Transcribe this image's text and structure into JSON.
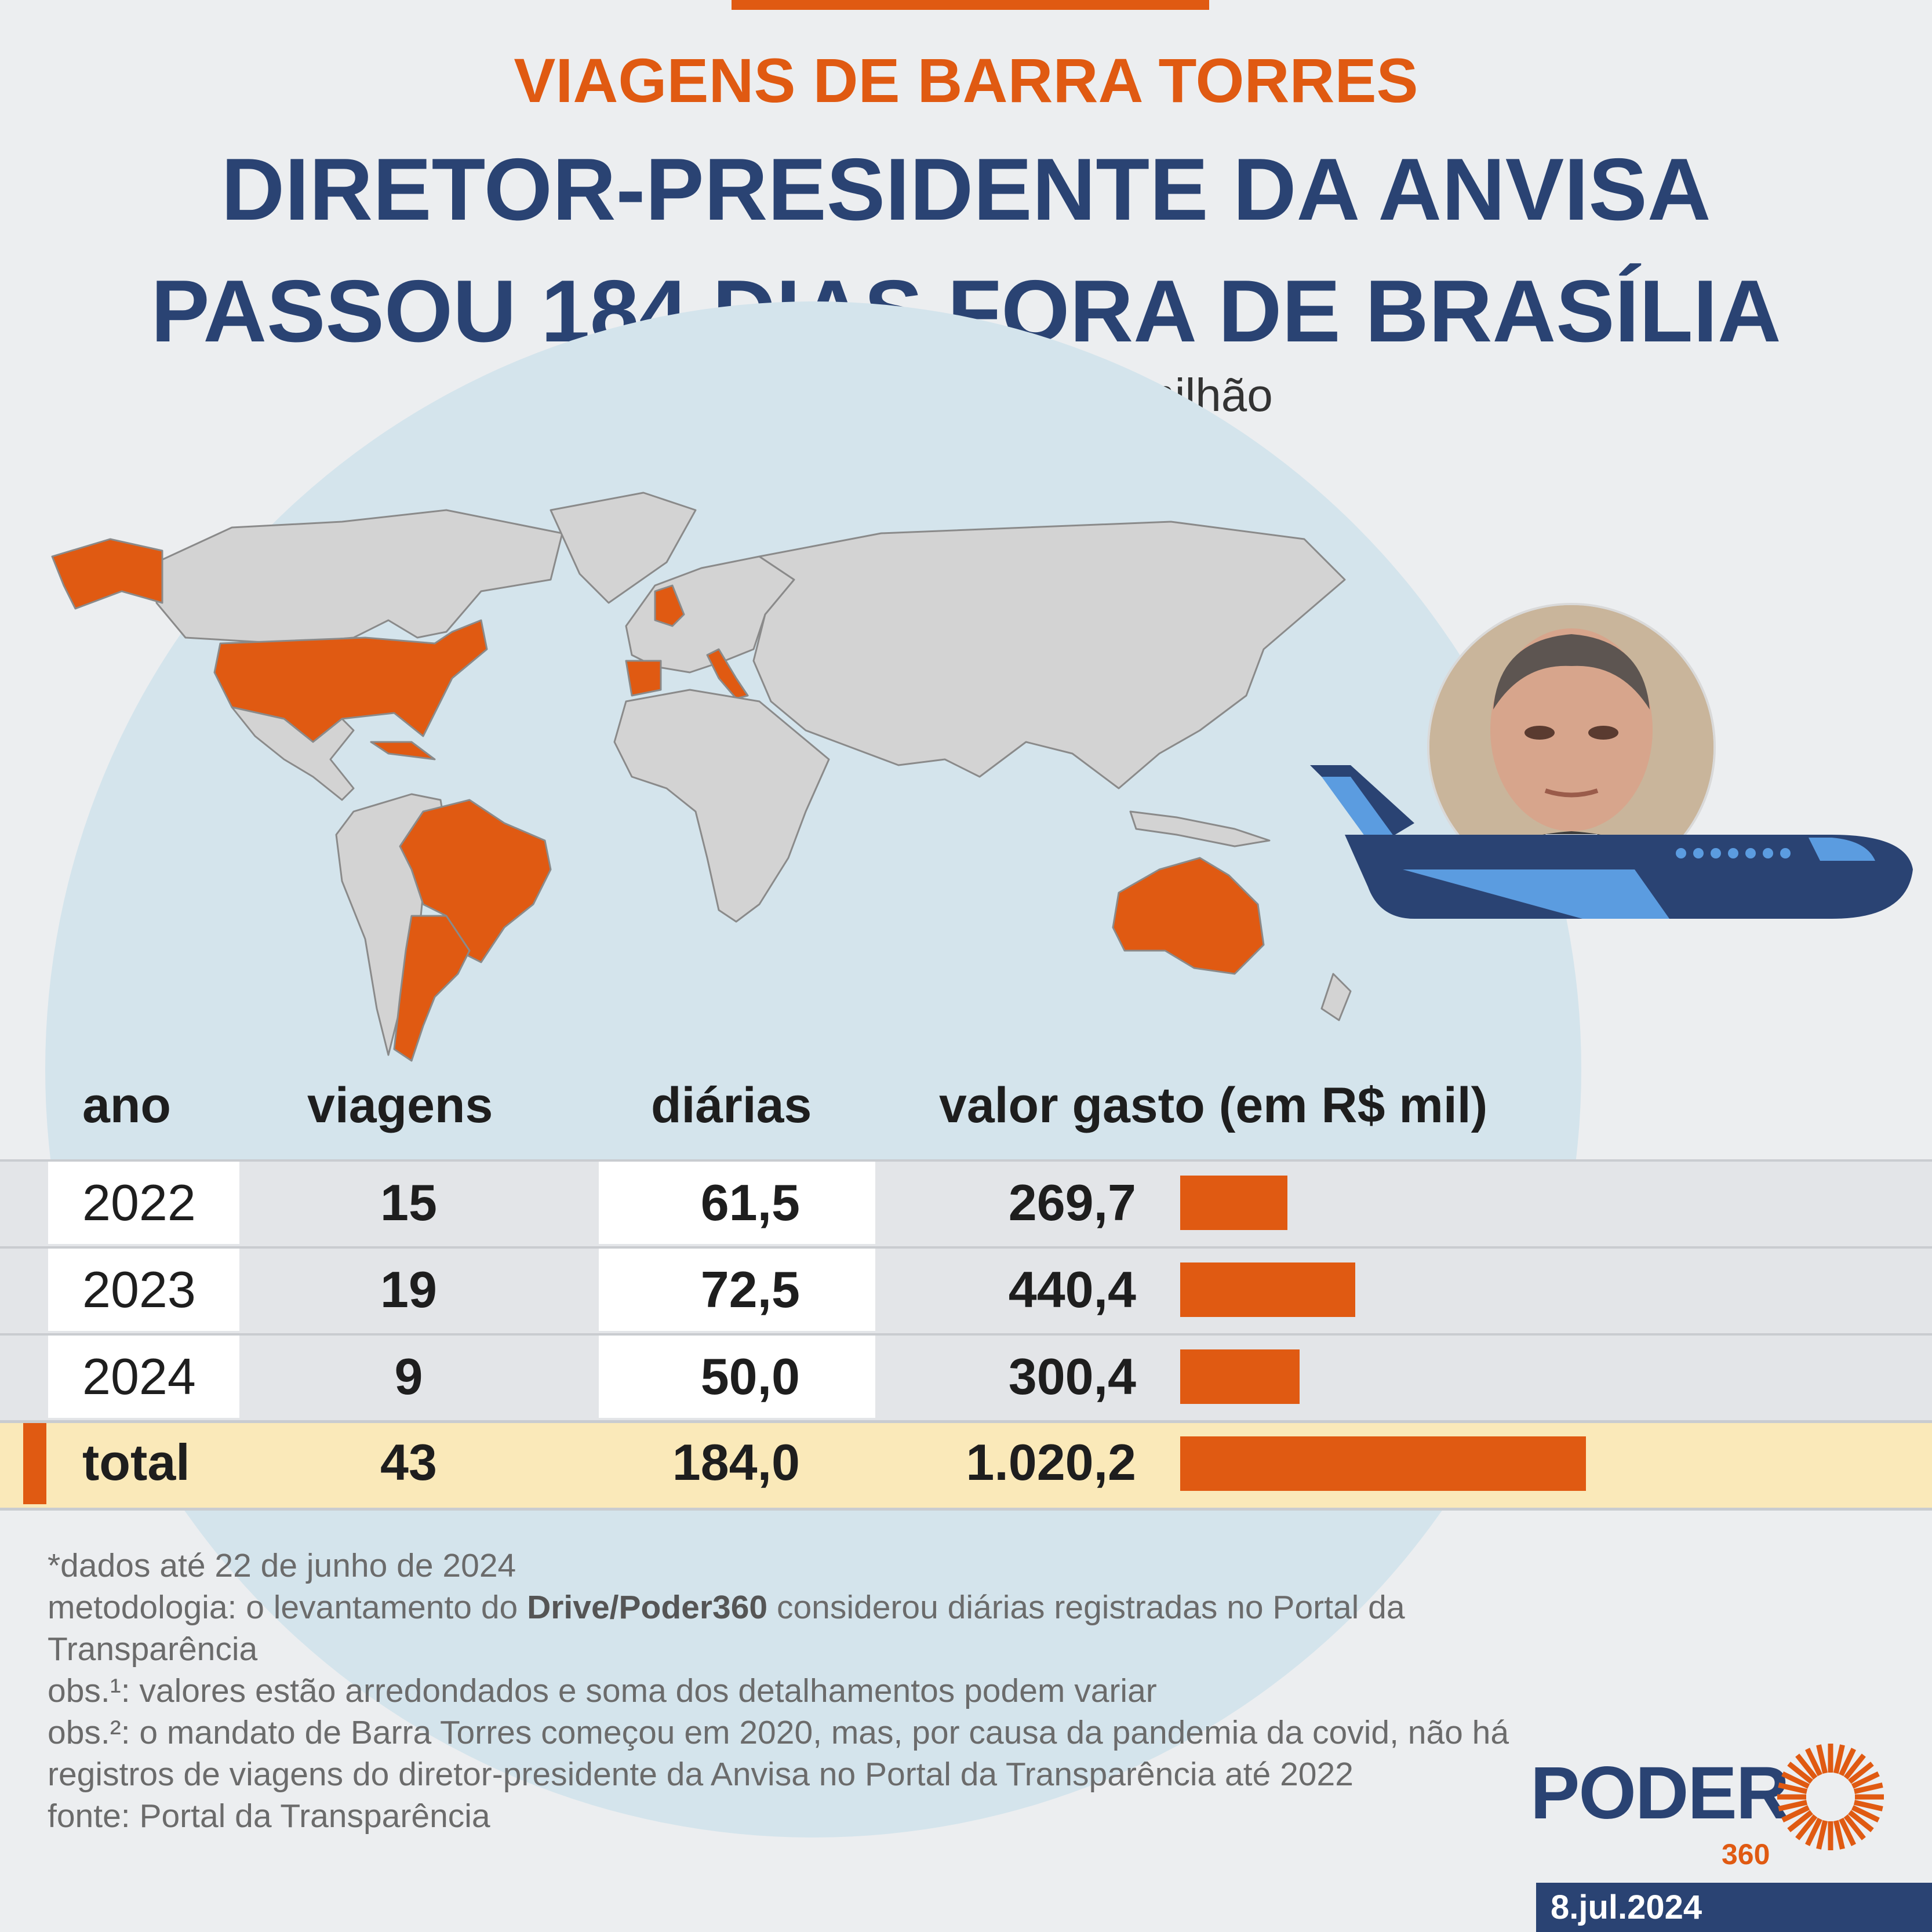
{
  "kicker": "VIAGENS DE BARRA TORRES",
  "headline": {
    "line1": "DIRETOR-PRESIDENTE DA ANVISA",
    "line2": "PASSOU 184 DIAS FORA DE BRASÍLIA"
  },
  "subtitle": "agência gasta R$ 1,02 milhão",
  "map": {
    "highlighted_countries": [
      "Estados Unidos",
      "Cuba",
      "Brasil",
      "Argentina",
      "Uruguai",
      "Reino Unido",
      "Espanha",
      "Portugal",
      "Itália",
      "Austrália"
    ],
    "highlight_color": "#e05a12",
    "land_color": "#d3d3d3"
  },
  "table": {
    "headers": {
      "ano": "ano",
      "viagens": "viagens",
      "diarias": "diárias",
      "valor": "valor gasto (em R$ mil)"
    },
    "rows": [
      {
        "ano": "2022",
        "viagens": "15",
        "diarias": "61,5",
        "valor": "269,7"
      },
      {
        "ano": "2023",
        "viagens": "19",
        "diarias": "72,5",
        "valor": "440,4"
      },
      {
        "ano": "2024",
        "viagens": "9",
        "diarias": "50,0",
        "valor": "300,4"
      }
    ],
    "total": {
      "ano": "total",
      "viagens": "43",
      "diarias": "184,0",
      "valor": "1.020,2"
    }
  },
  "chart_data": {
    "type": "bar",
    "categories": [
      "2022",
      "2023",
      "2024",
      "total"
    ],
    "values": [
      269.7,
      440.4,
      300.4,
      1020.2
    ],
    "ylabel": "valor gasto (em R$ mil)",
    "color": "#e05a12"
  },
  "notes": {
    "n1": "*dados até 22 de junho de 2024",
    "n2_pre": "metodologia: o levantamento do ",
    "n2_bold": "Drive/Poder360",
    "n2_post": " considerou diárias registradas no Portal da Transparência",
    "n3": "obs.¹: valores estão arredondados e soma dos detalhamentos podem variar",
    "n4": "obs.²: o mandato de Barra Torres começou em 2020, mas, por causa da pandemia da covid, não há registros de viagens do diretor-presidente da Anvisa no Portal da Transparência até 2022",
    "n5": "fonte: Portal da Transparência"
  },
  "brand": {
    "name": "PODER",
    "suffix": "360"
  },
  "date": "8.jul.2024",
  "colors": {
    "accent": "#e05a12",
    "navy": "#2a4373",
    "plane_light": "#5b9ce0"
  }
}
